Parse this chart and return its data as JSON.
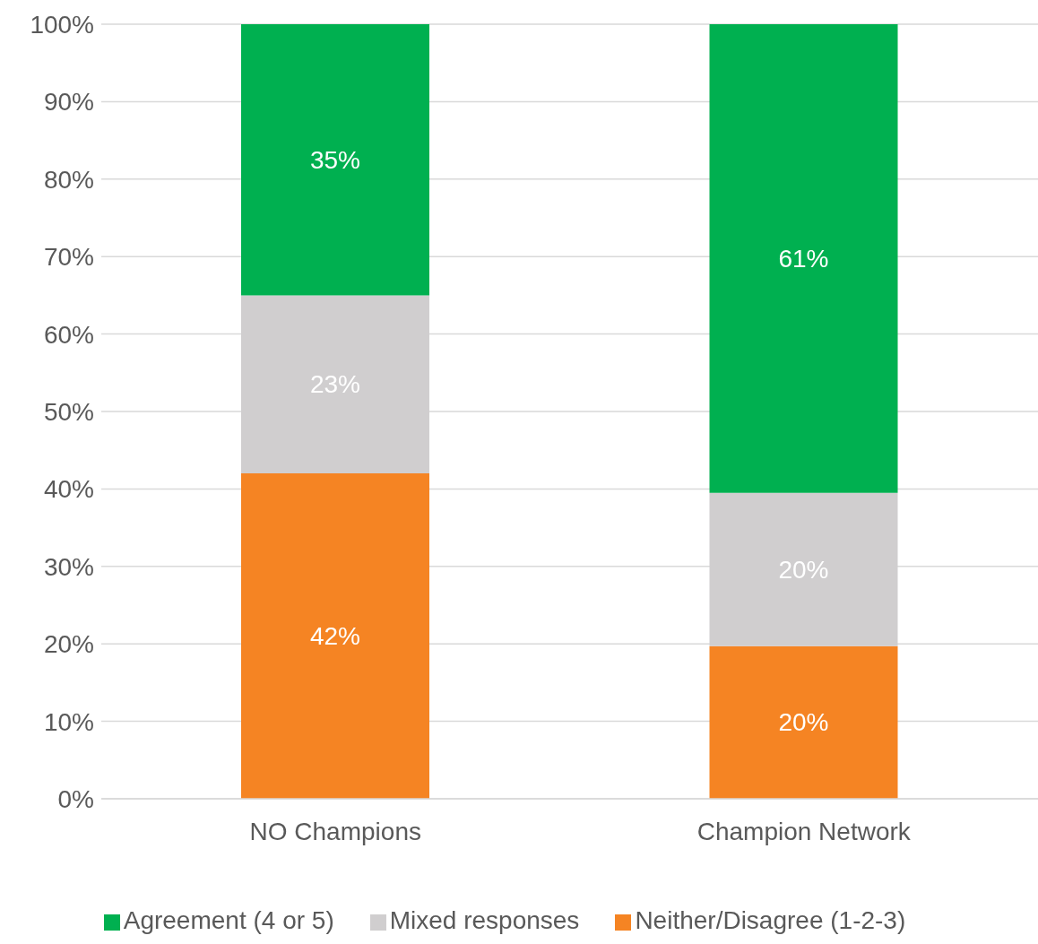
{
  "chart_data": {
    "type": "bar",
    "stacked": true,
    "categories": [
      "NO Champions",
      "Champion Network"
    ],
    "series": [
      {
        "name": "Neither/Disagree (1-2-3)",
        "color": "#f58423",
        "values": [
          42,
          19.7
        ],
        "value_labels": [
          "42%",
          "20%"
        ]
      },
      {
        "name": "Mixed responses",
        "color": "#d0cecf",
        "values": [
          23,
          19.8
        ],
        "value_labels": [
          "23%",
          "20%"
        ]
      },
      {
        "name": "Agreement (4 or 5)",
        "color": "#00b050",
        "values": [
          35,
          60.5
        ],
        "value_labels": [
          "35%",
          "61%"
        ]
      }
    ],
    "ylim": [
      0,
      100
    ],
    "yticks": [
      {
        "value": 0,
        "label": "0%"
      },
      {
        "value": 10,
        "label": "10%"
      },
      {
        "value": 20,
        "label": "20%"
      },
      {
        "value": 30,
        "label": "30%"
      },
      {
        "value": 40,
        "label": "40%"
      },
      {
        "value": 50,
        "label": "50%"
      },
      {
        "value": 60,
        "label": "60%"
      },
      {
        "value": 70,
        "label": "70%"
      },
      {
        "value": 80,
        "label": "80%"
      },
      {
        "value": 90,
        "label": "90%"
      },
      {
        "value": 100,
        "label": "100%"
      }
    ],
    "grid": "y",
    "legend": "bottom"
  }
}
